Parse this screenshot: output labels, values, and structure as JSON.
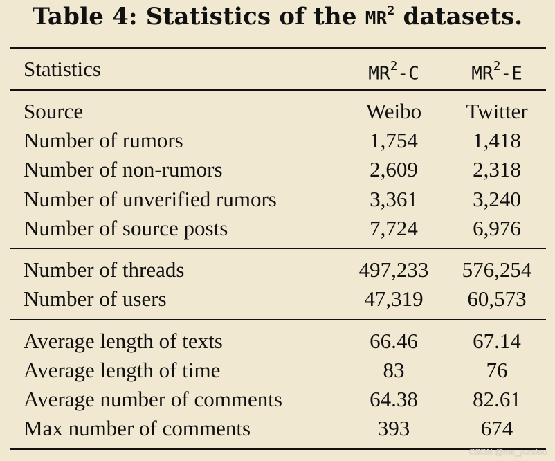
{
  "caption": {
    "prefix": "Table 4: Statistics of the ",
    "dataset_base": "MR",
    "dataset_exp": "2",
    "suffix": " datasets."
  },
  "table": {
    "header": {
      "label": "Statistics",
      "col1": {
        "base": "MR",
        "exp": "2",
        "suffix": "-C"
      },
      "col2": {
        "base": "MR",
        "exp": "2",
        "suffix": "-E"
      }
    },
    "groups": [
      [
        {
          "label": "Source",
          "c": "Weibo",
          "e": "Twitter"
        },
        {
          "label": "Number of rumors",
          "c": "1,754",
          "e": "1,418"
        },
        {
          "label": "Number of non-rumors",
          "c": "2,609",
          "e": "2,318"
        },
        {
          "label": "Number of unverified rumors",
          "c": "3,361",
          "e": "3,240"
        },
        {
          "label": "Number of source posts",
          "c": "7,724",
          "e": "6,976"
        }
      ],
      [
        {
          "label": "Number of threads",
          "c": "497,233",
          "e": "576,254"
        },
        {
          "label": "Number of users",
          "c": "47,319",
          "e": "60,573"
        }
      ],
      [
        {
          "label": "Average length of texts",
          "c": "66.46",
          "e": "67.14"
        },
        {
          "label": "Average length of time",
          "c": "83",
          "e": "76"
        },
        {
          "label": "Average number of comments",
          "c": "64.38",
          "e": "82.61"
        },
        {
          "label": "Max number of comments",
          "c": "393",
          "e": "674"
        }
      ]
    ]
  },
  "watermark": "CSDN @me_yundou"
}
